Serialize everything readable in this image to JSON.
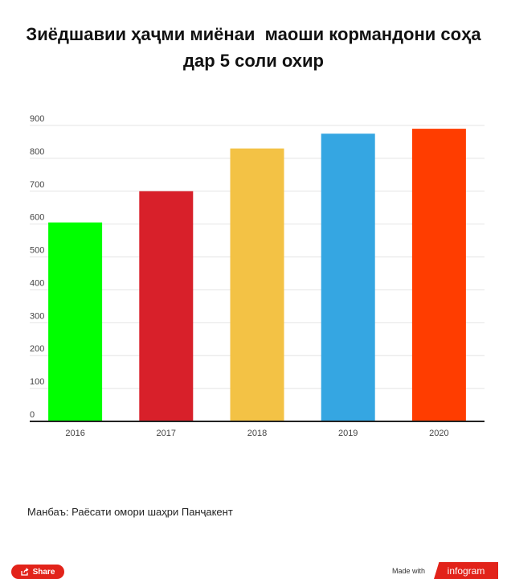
{
  "title": {
    "line1": "Зиёдшавии ҳаҷми миёнаи  маоши кормандони соҳа",
    "line2": "дар 5 соли охир"
  },
  "chart_data": {
    "type": "bar",
    "categories": [
      "2016",
      "2017",
      "2018",
      "2019",
      "2020"
    ],
    "values": [
      605,
      700,
      830,
      875,
      890
    ],
    "colors": [
      "#00ff00",
      "#d8202a",
      "#f3c245",
      "#35a6e2",
      "#ff3d00"
    ],
    "ylim": [
      0,
      900
    ],
    "yticks": [
      "0",
      "100",
      "200",
      "300",
      "400",
      "500",
      "600",
      "700",
      "800",
      "900"
    ],
    "grid": true,
    "xlabel": "",
    "ylabel": ""
  },
  "source": "Манбаъ: Раёсати омори шаҳри Панҷакент",
  "footer": {
    "share_label": "Share",
    "made_with": "Made with",
    "brand": "infogram"
  }
}
